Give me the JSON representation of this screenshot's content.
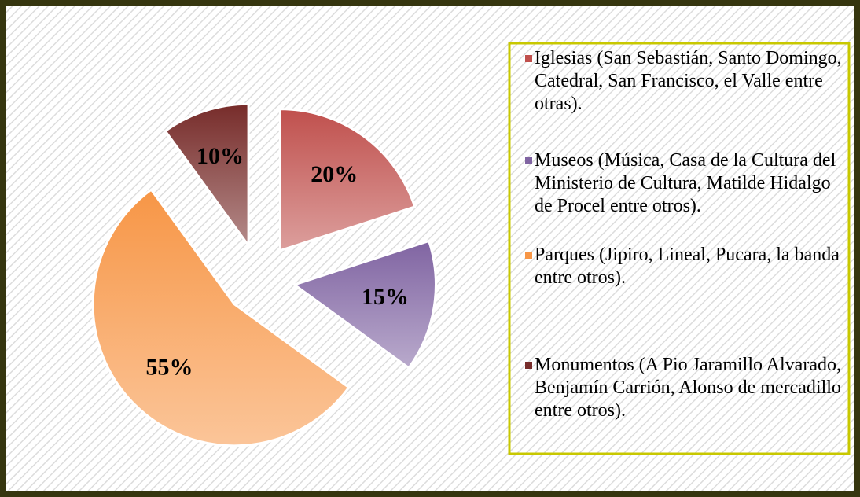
{
  "chart_data": {
    "type": "pie",
    "categories": [
      "Iglesias (San Sebastián, Santo Domingo, Catedral, San Francisco, el Valle entre otras).",
      "Museos (Música, Casa de la Cultura del Ministerio de Cultura, Matilde Hidalgo de Procel entre otros).",
      "Parques (Jipiro, Lineal, Pucara, la banda entre otros).",
      "Monumentos (A Pio Jaramillo Alvarado, Benjamín Carrión, Alonso de mercadillo entre otros)."
    ],
    "values": [
      20,
      15,
      55,
      10
    ],
    "value_labels": [
      "20%",
      "15%",
      "55%",
      "10%"
    ],
    "colors": [
      "#c0504d",
      "#8064a2",
      "#f79646",
      "#772c2a"
    ],
    "legend": "right"
  }
}
